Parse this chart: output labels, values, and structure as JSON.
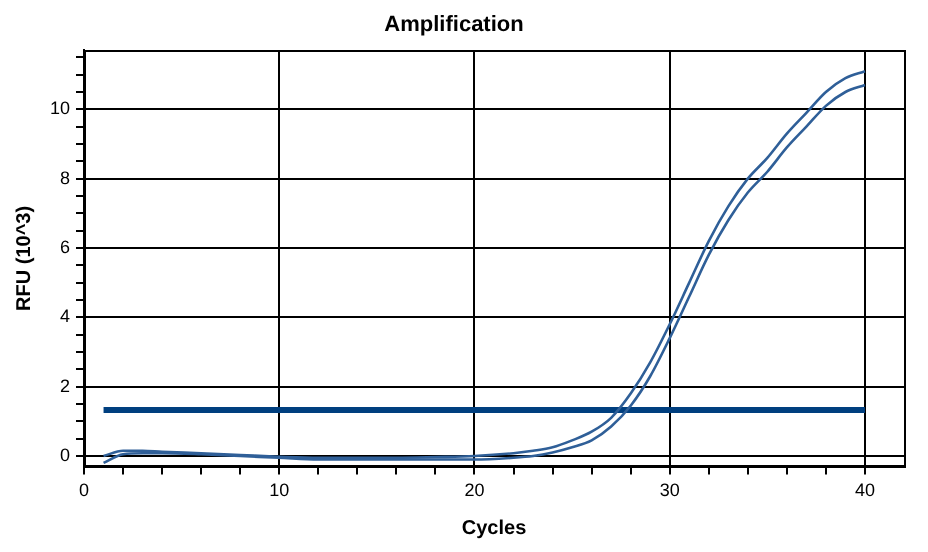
{
  "chart_data": {
    "type": "line",
    "title": "Amplification",
    "xlabel": "Cycles",
    "ylabel": "RFU (10^3)",
    "xlim": [
      0,
      42
    ],
    "ylim": [
      -0.3,
      11.7
    ],
    "xticks": [
      0,
      {
        "value": 2,
        "label": null
      },
      {
        "value": 4,
        "label": null
      },
      {
        "value": 6,
        "label": null
      },
      {
        "value": 8,
        "label": null
      },
      10,
      {
        "value": 12,
        "label": null
      },
      {
        "value": 14,
        "label": null
      },
      {
        "value": 16,
        "label": null
      },
      {
        "value": 18,
        "label": null
      },
      20,
      {
        "value": 22,
        "label": null
      },
      {
        "value": 24,
        "label": null
      },
      {
        "value": 26,
        "label": null
      },
      {
        "value": 28,
        "label": null
      },
      30,
      {
        "value": 32,
        "label": null
      },
      {
        "value": 34,
        "label": null
      },
      {
        "value": 36,
        "label": null
      },
      {
        "value": 38,
        "label": null
      },
      40
    ],
    "yticks": [
      0,
      {
        "value": 0.5,
        "label": null
      },
      {
        "value": 1,
        "label": null
      },
      {
        "value": 1.5,
        "label": null
      },
      2,
      {
        "value": 2.5,
        "label": null
      },
      {
        "value": 3,
        "label": null
      },
      {
        "value": 3.5,
        "label": null
      },
      4,
      {
        "value": 4.5,
        "label": null
      },
      {
        "value": 5,
        "label": null
      },
      {
        "value": 5.5,
        "label": null
      },
      6,
      {
        "value": 6.5,
        "label": null
      },
      {
        "value": 7,
        "label": null
      },
      {
        "value": 7.5,
        "label": null
      },
      8,
      {
        "value": 8.5,
        "label": null
      },
      {
        "value": 9,
        "label": null
      },
      {
        "value": 9.5,
        "label": null
      },
      10,
      {
        "value": 10.5,
        "label": null
      },
      {
        "value": 11,
        "label": null
      },
      {
        "value": 11.5,
        "label": null
      }
    ],
    "grid": true,
    "legend": false,
    "marker": "none",
    "line_style": "solid",
    "ref_lines": [
      {
        "axis": "y",
        "value": 1.33,
        "color": "#003f7f"
      }
    ],
    "x": [
      1,
      2,
      3,
      4,
      6,
      8,
      10,
      12,
      14,
      16,
      18,
      20,
      22,
      23,
      24,
      25,
      26,
      27,
      28,
      29,
      30,
      31,
      32,
      33,
      34,
      35,
      36,
      37,
      38,
      39,
      40
    ],
    "series": [
      {
        "color": "#2f5f98",
        "values": [
          0.0,
          0.15,
          0.15,
          0.12,
          0.08,
          0.03,
          -0.02,
          -0.05,
          -0.05,
          -0.05,
          -0.03,
          0.0,
          0.08,
          0.15,
          0.25,
          0.45,
          0.7,
          1.1,
          1.8,
          2.7,
          3.8,
          5.0,
          6.2,
          7.2,
          8.0,
          8.6,
          9.3,
          9.9,
          10.5,
          10.9,
          11.1
        ]
      },
      {
        "color": "#2f5f98",
        "values": [
          -0.2,
          0.05,
          0.08,
          0.08,
          0.05,
          0.0,
          -0.05,
          -0.1,
          -0.1,
          -0.1,
          -0.1,
          -0.1,
          -0.05,
          0.0,
          0.1,
          0.25,
          0.45,
          0.85,
          1.45,
          2.3,
          3.4,
          4.6,
          5.8,
          6.8,
          7.6,
          8.2,
          8.9,
          9.5,
          10.1,
          10.5,
          10.7
        ]
      }
    ]
  }
}
